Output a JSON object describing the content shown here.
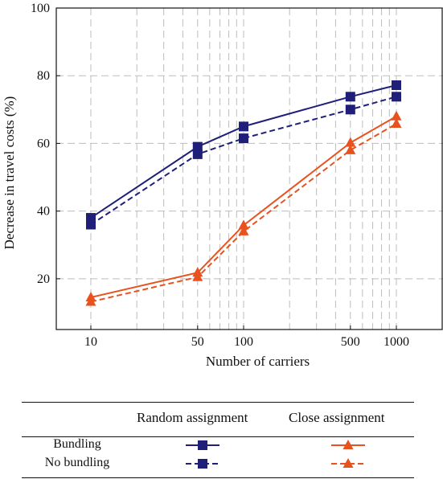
{
  "chart_data": {
    "type": "line",
    "xscale": "log",
    "x": [
      10,
      50,
      100,
      500,
      1000
    ],
    "x_tick_labels": [
      "10",
      "50",
      "100",
      "500",
      "1000"
    ],
    "xlabel": "Number of carriers",
    "ylabel": "Decrease in travel costs (%)",
    "ylim": [
      5,
      100
    ],
    "y_ticks": [
      20,
      40,
      60,
      80,
      100
    ],
    "grid": true,
    "series": [
      {
        "assignment": "Random assignment",
        "bundling": "Bundling",
        "color": "#1f1f7a",
        "marker": "square",
        "dash": "solid",
        "values": [
          38.0,
          59.0,
          65.0,
          73.8,
          77.2
        ]
      },
      {
        "assignment": "Random assignment",
        "bundling": "No bundling",
        "color": "#1f1f7a",
        "marker": "square",
        "dash": "dashed",
        "values": [
          36.0,
          56.8,
          61.5,
          70.0,
          73.8
        ]
      },
      {
        "assignment": "Close assignment",
        "bundling": "Bundling",
        "color": "#e8521f",
        "marker": "triangle",
        "dash": "solid",
        "values": [
          14.5,
          21.8,
          35.8,
          60.2,
          68.0
        ]
      },
      {
        "assignment": "Close assignment",
        "bundling": "No bundling",
        "color": "#e8521f",
        "marker": "triangle",
        "dash": "dashed",
        "values": [
          13.2,
          20.5,
          34.0,
          58.0,
          65.8
        ]
      }
    ]
  },
  "legend_table": {
    "columns": [
      "Random assignment",
      "Close assignment"
    ],
    "rows": [
      "Bundling",
      "No bundling"
    ]
  }
}
